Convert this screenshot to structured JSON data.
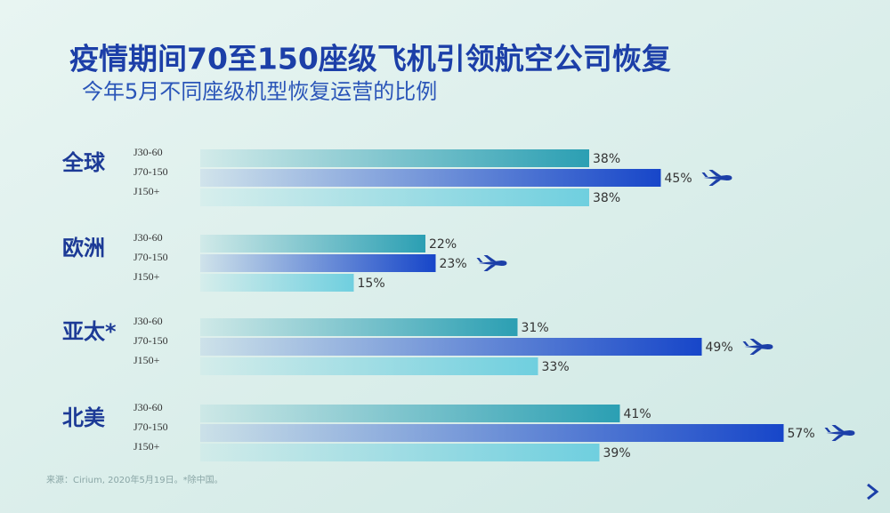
{
  "chart_data": {
    "type": "bar",
    "orientation": "horizontal",
    "title": "疫情期间70至150座级飞机引领航空公司恢复",
    "subtitle": "今年5月不同座级机型恢复运营的比例",
    "source": "来源：Cirium, 2020年5月19日。*除中国。",
    "categories": [
      "全球",
      "欧洲",
      "亚太*",
      "北美"
    ],
    "series": [
      {
        "name": "J30-60",
        "color": "#2b9fb3",
        "values": [
          38,
          22,
          31,
          41
        ],
        "value_labels": [
          "38%",
          "22%",
          "31%",
          "41%"
        ]
      },
      {
        "name": "J70-150",
        "color": "#1746c9",
        "values": [
          45,
          23,
          49,
          57
        ],
        "value_labels": [
          "45%",
          "23%",
          "49%",
          "57%"
        ]
      },
      {
        "name": "J150+",
        "color": "#6fcfdf",
        "values": [
          38,
          15,
          33,
          39
        ],
        "value_labels": [
          "38%",
          "15%",
          "33%",
          "39%"
        ]
      }
    ]
  }
}
